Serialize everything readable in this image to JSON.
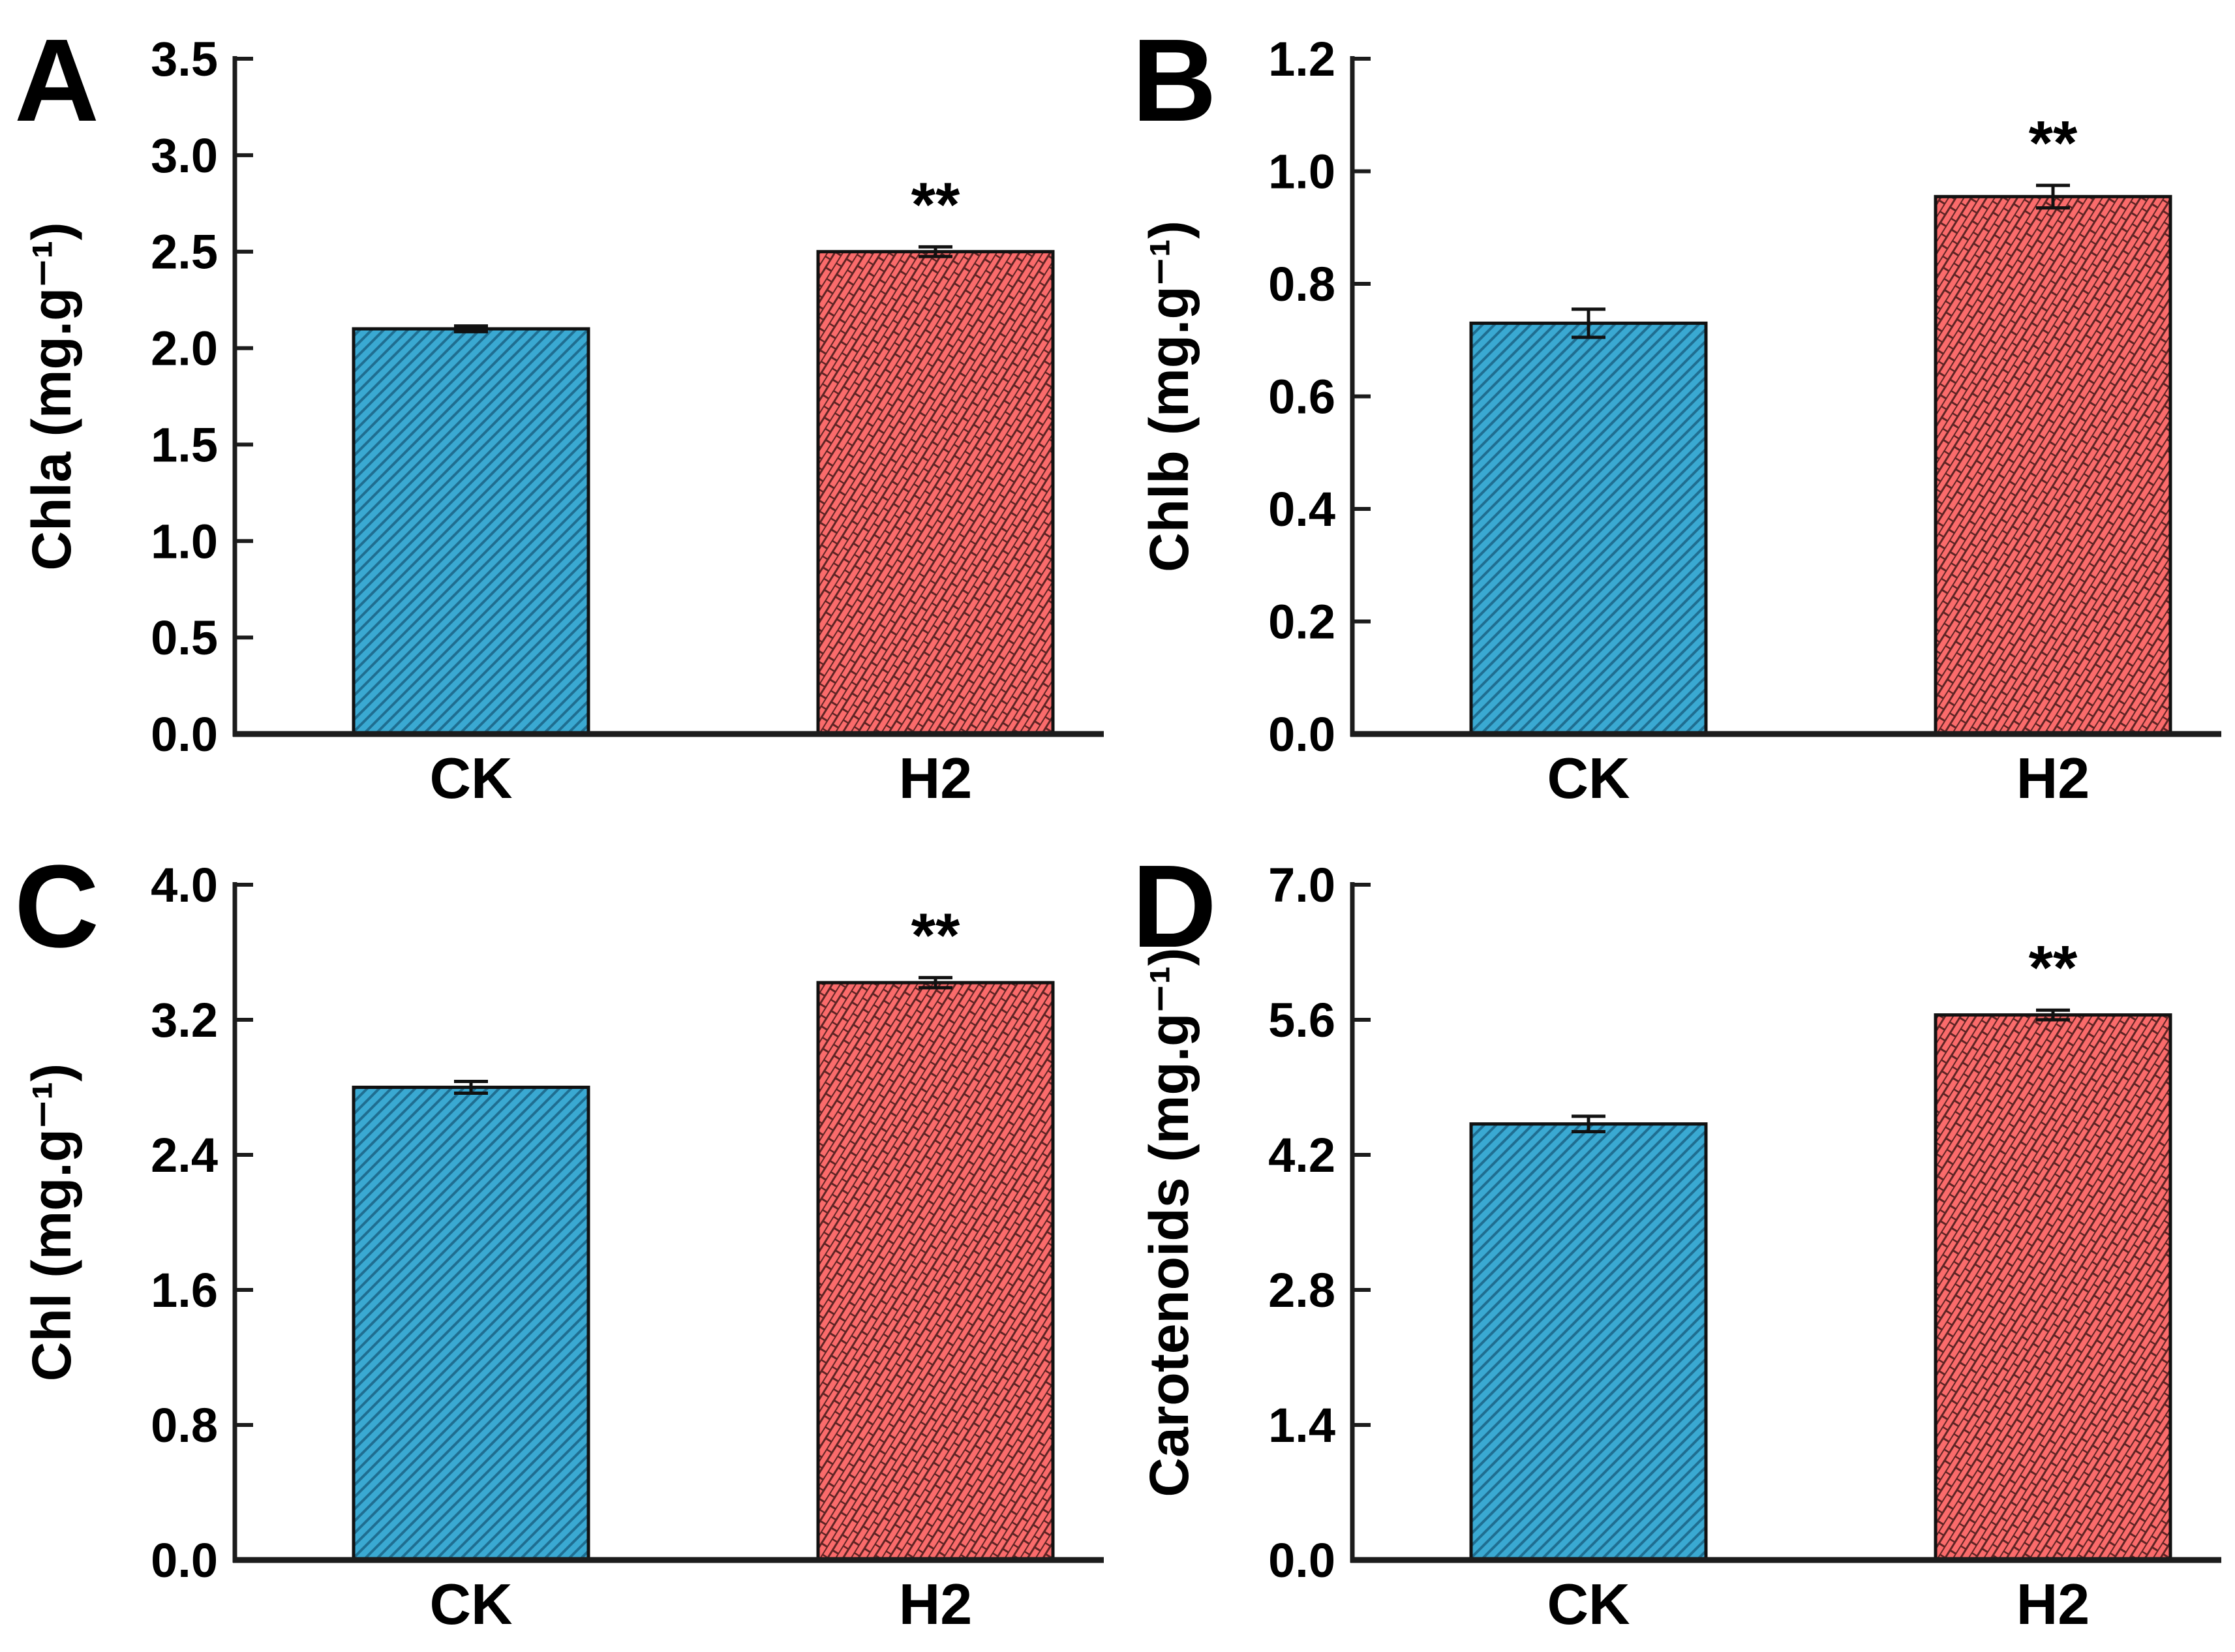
{
  "figure_title": "",
  "layout": {
    "grid": "2x2",
    "background": "#ffffff",
    "legend": "none",
    "gridlines": false
  },
  "style": {
    "ck_fill": "#3aa9d2",
    "ck_hatch": "#1f6e91",
    "h2_fill": "#fa6b6b",
    "h2_hatch": "#5f2424",
    "bar_edge": "#111111",
    "axis_color": "#1c1c1c",
    "text_color": "#000000"
  },
  "chart_data": [
    {
      "type": "bar",
      "panel_label": "A",
      "title": "",
      "xlabel": "",
      "ylabel": "Chla (mg.g⁻¹)",
      "categories": [
        "CK",
        "H2"
      ],
      "values": [
        2.1,
        2.5
      ],
      "errors": [
        0.015,
        0.025
      ],
      "significance": [
        "",
        "**"
      ],
      "ylim": [
        0.0,
        3.5
      ],
      "yticks": [
        0.0,
        0.5,
        1.0,
        1.5,
        2.0,
        2.5,
        3.0,
        3.5
      ]
    },
    {
      "type": "bar",
      "panel_label": "B",
      "title": "",
      "xlabel": "",
      "ylabel": "Chlb (mg.g⁻¹)",
      "categories": [
        "CK",
        "H2"
      ],
      "values": [
        0.73,
        0.955
      ],
      "errors": [
        0.025,
        0.02
      ],
      "significance": [
        "",
        "**"
      ],
      "ylim": [
        0.0,
        1.2
      ],
      "yticks": [
        0.0,
        0.2,
        0.4,
        0.6,
        0.8,
        1.0,
        1.2
      ]
    },
    {
      "type": "bar",
      "panel_label": "C",
      "title": "",
      "xlabel": "",
      "ylabel": "Chl (mg.g⁻¹)",
      "categories": [
        "CK",
        "H2"
      ],
      "values": [
        2.8,
        3.42
      ],
      "errors": [
        0.035,
        0.03
      ],
      "significance": [
        "",
        "**"
      ],
      "ylim": [
        0.0,
        4.0
      ],
      "yticks": [
        0.0,
        0.8,
        1.6,
        2.4,
        3.2,
        4.0
      ]
    },
    {
      "type": "bar",
      "panel_label": "D",
      "title": "",
      "xlabel": "",
      "ylabel": "Carotenoids (mg.g⁻¹)",
      "categories": [
        "CK",
        "H2"
      ],
      "values": [
        4.52,
        5.65
      ],
      "errors": [
        0.08,
        0.05
      ],
      "significance": [
        "",
        "**"
      ],
      "ylim": [
        0.0,
        7.0
      ],
      "yticks": [
        0.0,
        1.4,
        2.8,
        4.2,
        5.6,
        7.0
      ]
    }
  ]
}
